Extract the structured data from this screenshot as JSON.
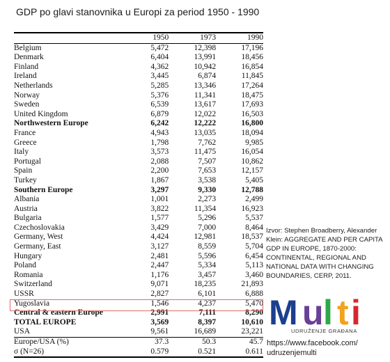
{
  "title": "GDP po glavi stanovnika u Europi za period 1950 - 1990",
  "table": {
    "columns": [
      "",
      "1950",
      "1973",
      "1990"
    ],
    "rows": [
      {
        "name": "Belgium",
        "values": [
          "5,472",
          "12,398",
          "17,196"
        ]
      },
      {
        "name": "Denmark",
        "values": [
          "6,404",
          "13,991",
          "18,456"
        ]
      },
      {
        "name": "Finland",
        "values": [
          "4,362",
          "10,942",
          "16,854"
        ]
      },
      {
        "name": "Ireland",
        "values": [
          "3,445",
          "6,874",
          "11,845"
        ]
      },
      {
        "name": "Netherlands",
        "values": [
          "5,285",
          "13,346",
          "17,264"
        ]
      },
      {
        "name": "Norway",
        "values": [
          "5,376",
          "11,341",
          "18,475"
        ]
      },
      {
        "name": "Sweden",
        "values": [
          "6,539",
          "13,617",
          "17,693"
        ]
      },
      {
        "name": "United Kingdom",
        "values": [
          "6,879",
          "12,022",
          "16,503"
        ]
      },
      {
        "name": "Northwestern Europe",
        "values": [
          "6,242",
          "12,222",
          "16,800"
        ],
        "bold": true
      },
      {
        "name": "France",
        "values": [
          "4,943",
          "13,035",
          "18,094"
        ]
      },
      {
        "name": "Greece",
        "values": [
          "1,798",
          "7,762",
          "9,985"
        ]
      },
      {
        "name": "Italy",
        "values": [
          "3,573",
          "11,475",
          "16,054"
        ]
      },
      {
        "name": "Portugal",
        "values": [
          "2,088",
          "7,507",
          "10,862"
        ]
      },
      {
        "name": "Spain",
        "values": [
          "2,200",
          "7,653",
          "12,157"
        ]
      },
      {
        "name": "Turkey",
        "values": [
          "1,867",
          "3,538",
          "5,405"
        ]
      },
      {
        "name": "Southern Europe",
        "values": [
          "3,297",
          "9,330",
          "12,788"
        ],
        "bold": true
      },
      {
        "name": "Albania",
        "values": [
          "1,001",
          "2,273",
          "2,499"
        ]
      },
      {
        "name": "Austria",
        "values": [
          "3,822",
          "11,354",
          "16,923"
        ]
      },
      {
        "name": "Bulgaria",
        "values": [
          "1,577",
          "5,296",
          "5,537"
        ]
      },
      {
        "name": "Czechoslovakia",
        "values": [
          "3,429",
          "7,000",
          "8,464"
        ]
      },
      {
        "name": "Germany, West",
        "values": [
          "4,424",
          "12,981",
          "18,537"
        ]
      },
      {
        "name": "Germany, East",
        "values": [
          "3,127",
          "8,559",
          "5,704"
        ]
      },
      {
        "name": "Hungary",
        "values": [
          "2,481",
          "5,596",
          "6,454"
        ]
      },
      {
        "name": "Poland",
        "values": [
          "2,447",
          "5,334",
          "5,113"
        ]
      },
      {
        "name": "Romania",
        "values": [
          "1,176",
          "3,457",
          "3,460"
        ]
      },
      {
        "name": "Switzerland",
        "values": [
          "9,071",
          "18,235",
          "21,893"
        ]
      },
      {
        "name": "USSR",
        "values": [
          "2,827",
          "6,101",
          "6,888"
        ]
      },
      {
        "name": "Yugoslavia",
        "values": [
          "1,546",
          "4,237",
          "5,470"
        ],
        "highlight": true
      },
      {
        "name": "Central & eastern Europe",
        "values": [
          "2,991",
          "7,111",
          "8,290"
        ],
        "bold": true
      },
      {
        "name": "TOTAL EUROPE",
        "values": [
          "3,569",
          "8,397",
          "10,610"
        ],
        "bold": true
      },
      {
        "name": "USA",
        "values": [
          "9,561",
          "16,689",
          "23,221"
        ],
        "rule_below": true
      },
      {
        "name": "Europe/USA (%)",
        "values": [
          "37.3",
          "50.3",
          "45.7"
        ]
      },
      {
        "name": "σ (N=26)",
        "values": [
          "0.579",
          "0.521",
          "0.611"
        ]
      }
    ],
    "highlight_color": "#e06b6b"
  },
  "source": "Izvor: Stephen Broadberry, Alexander Klein: AGGREGATE AND PER CAPITA GDP IN EUROPE, 1870-2000: CONTINENTAL, REGIONAL AND NATIONAL DATA WITH CHANGING BOUNDARIES, CERP, 2011.",
  "logo": {
    "word": "Multi",
    "tagline": "UDRUŽENJE GRAĐANA",
    "colors": [
      "#1b3f8f",
      "#6a3f97",
      "#2fa84a",
      "#f2a21c",
      "#d8262e"
    ]
  },
  "facebook": "https://www.facebook.com/\nudruzenjemulti"
}
